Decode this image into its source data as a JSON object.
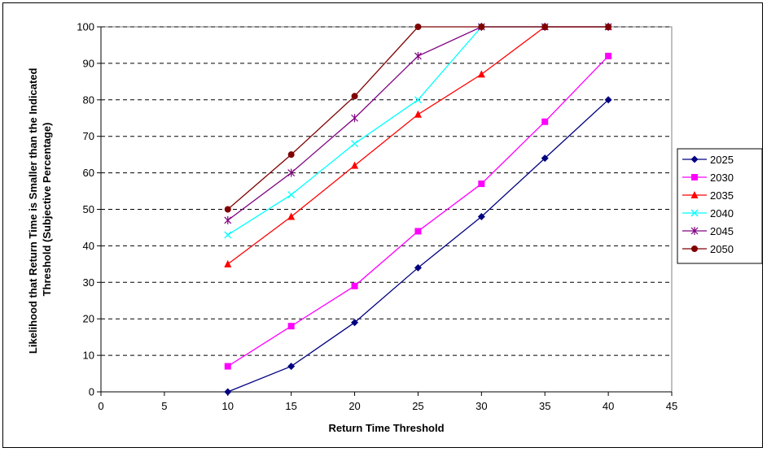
{
  "chart_data": {
    "type": "line",
    "title": "",
    "xlabel": "Return Time Threshold",
    "ylabel_line1": "Likelihood that Return Time is Smaller than the Indicated",
    "ylabel_line2": "Threshold (Subjective Percentage)",
    "xlim": [
      0,
      45
    ],
    "ylim": [
      0,
      100
    ],
    "xticks": [
      "0",
      "5",
      "10",
      "15",
      "20",
      "25",
      "30",
      "35",
      "40",
      "45"
    ],
    "yticks": [
      "0",
      "10",
      "20",
      "30",
      "40",
      "50",
      "60",
      "70",
      "80",
      "90",
      "100"
    ],
    "grid": "horizontal-dashed",
    "legend_position": "right",
    "x": [
      10,
      15,
      20,
      25,
      30,
      35,
      40
    ],
    "series": [
      {
        "name": "2025",
        "color": "#000080",
        "marker": "diamond",
        "values": [
          0,
          7,
          19,
          34,
          48,
          64,
          80
        ]
      },
      {
        "name": "2030",
        "color": "#FF00FF",
        "marker": "square",
        "values": [
          7,
          18,
          29,
          44,
          57,
          74,
          92
        ]
      },
      {
        "name": "2035",
        "color": "#FF0000",
        "marker": "triangle",
        "values": [
          35,
          48,
          62,
          76,
          87,
          100,
          100
        ]
      },
      {
        "name": "2040",
        "color": "#00FFFF",
        "marker": "x",
        "values": [
          43,
          54,
          68,
          80,
          100,
          100,
          100
        ]
      },
      {
        "name": "2045",
        "color": "#800080",
        "marker": "star",
        "values": [
          47,
          60,
          75,
          92,
          100,
          100,
          100
        ]
      },
      {
        "name": "2050",
        "color": "#800000",
        "marker": "circle",
        "values": [
          50,
          65,
          81,
          100,
          100,
          100,
          100
        ]
      }
    ]
  }
}
